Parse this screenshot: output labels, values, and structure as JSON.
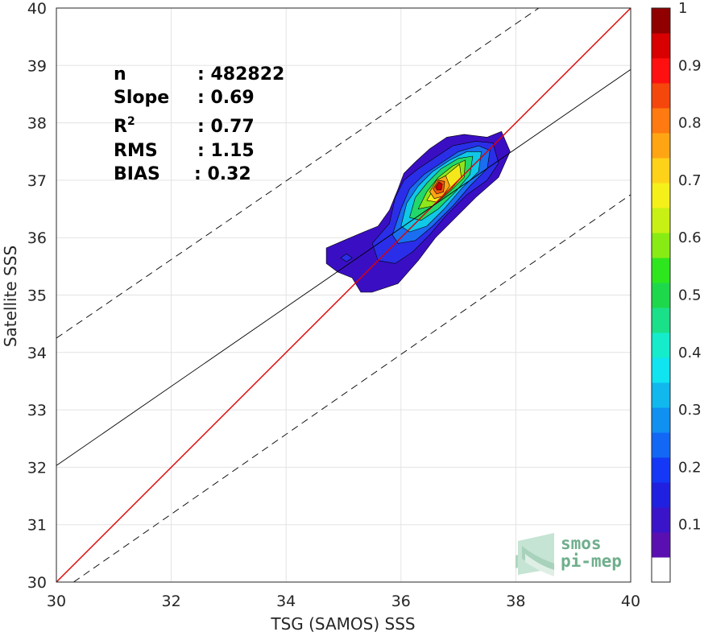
{
  "chart_data": {
    "type": "heatmap",
    "subtype": "density-scatter (filled contour)",
    "xlabel": "TSG (SAMOS) SSS",
    "ylabel": "Satellite SSS",
    "xlim": [
      30,
      40
    ],
    "ylim": [
      30,
      40
    ],
    "xticks": [
      "30",
      "32",
      "34",
      "36",
      "38",
      "40"
    ],
    "yticks": [
      "30",
      "31",
      "32",
      "33",
      "34",
      "35",
      "36",
      "37",
      "38",
      "39",
      "40"
    ],
    "grid": true,
    "stats": [
      {
        "label": "n",
        "value": ": 482822"
      },
      {
        "label": "Slope",
        "value": ": 0.69"
      },
      {
        "label": "R",
        "sup": "2",
        "value": ": 0.77"
      },
      {
        "label": "RMS",
        "value": ": 1.15"
      },
      {
        "label": "BIAS",
        "value": ": 0.32"
      }
    ],
    "lines": [
      {
        "kind": "one-to-one",
        "color": "#e00000",
        "points": [
          [
            30,
            30
          ],
          [
            40,
            40
          ]
        ]
      },
      {
        "kind": "regression",
        "color": "#000000",
        "slope": 0.69,
        "intercept": 11.33
      },
      {
        "kind": "upper-bound",
        "color": "#000000",
        "dash": true,
        "points": [
          [
            30,
            34.25
          ],
          [
            38.4,
            40
          ]
        ]
      },
      {
        "kind": "lower-bound",
        "color": "#000000",
        "dash": true,
        "points": [
          [
            30.3,
            30
          ],
          [
            40,
            36.75
          ]
        ]
      }
    ],
    "density_levels": [
      {
        "level": 0.05,
        "color": "#3a0fc4",
        "polygon": [
          [
            34.7,
            35.82
          ],
          [
            35.0,
            35.95
          ],
          [
            35.35,
            36.1
          ],
          [
            35.6,
            36.2
          ],
          [
            35.8,
            36.48
          ],
          [
            35.95,
            36.85
          ],
          [
            36.05,
            37.12
          ],
          [
            36.25,
            37.32
          ],
          [
            36.5,
            37.55
          ],
          [
            36.8,
            37.75
          ],
          [
            37.1,
            37.8
          ],
          [
            37.5,
            37.75
          ],
          [
            37.75,
            37.85
          ],
          [
            37.9,
            37.5
          ],
          [
            37.7,
            37.05
          ],
          [
            37.3,
            36.7
          ],
          [
            36.9,
            36.3
          ],
          [
            36.6,
            36.0
          ],
          [
            36.3,
            35.6
          ],
          [
            35.95,
            35.2
          ],
          [
            35.5,
            35.05
          ],
          [
            35.3,
            35.05
          ],
          [
            35.15,
            35.3
          ],
          [
            34.9,
            35.4
          ],
          [
            34.7,
            35.55
          ]
        ]
      },
      {
        "level": 0.15,
        "color": "#2a2ee8",
        "polygon": [
          [
            35.5,
            35.9
          ],
          [
            35.8,
            36.25
          ],
          [
            35.9,
            36.7
          ],
          [
            36.05,
            37.0
          ],
          [
            36.3,
            37.2
          ],
          [
            36.6,
            37.4
          ],
          [
            36.9,
            37.6
          ],
          [
            37.3,
            37.68
          ],
          [
            37.6,
            37.65
          ],
          [
            37.7,
            37.3
          ],
          [
            37.5,
            37.0
          ],
          [
            37.15,
            36.75
          ],
          [
            36.8,
            36.4
          ],
          [
            36.5,
            36.05
          ],
          [
            36.2,
            35.75
          ],
          [
            35.9,
            35.55
          ],
          [
            35.6,
            35.6
          ]
        ]
      },
      {
        "level": 0.25,
        "color": "#1a6ff0",
        "polygon": [
          [
            35.85,
            36.05
          ],
          [
            36.0,
            36.5
          ],
          [
            36.15,
            36.85
          ],
          [
            36.4,
            37.1
          ],
          [
            36.7,
            37.3
          ],
          [
            37.0,
            37.5
          ],
          [
            37.35,
            37.6
          ],
          [
            37.55,
            37.52
          ],
          [
            37.5,
            37.2
          ],
          [
            37.2,
            36.9
          ],
          [
            36.9,
            36.55
          ],
          [
            36.55,
            36.2
          ],
          [
            36.25,
            35.95
          ],
          [
            35.95,
            35.9
          ]
        ]
      },
      {
        "level": 0.35,
        "color": "#10c8e8",
        "polygon": [
          [
            36.0,
            36.2
          ],
          [
            36.1,
            36.6
          ],
          [
            36.3,
            36.9
          ],
          [
            36.55,
            37.15
          ],
          [
            36.85,
            37.35
          ],
          [
            37.15,
            37.5
          ],
          [
            37.4,
            37.5
          ],
          [
            37.35,
            37.15
          ],
          [
            37.05,
            36.85
          ],
          [
            36.75,
            36.5
          ],
          [
            36.45,
            36.2
          ],
          [
            36.15,
            36.1
          ]
        ]
      },
      {
        "level": 0.45,
        "color": "#22d86a",
        "polygon": [
          [
            36.15,
            36.35
          ],
          [
            36.25,
            36.7
          ],
          [
            36.45,
            36.95
          ],
          [
            36.7,
            37.2
          ],
          [
            37.0,
            37.38
          ],
          [
            37.25,
            37.42
          ],
          [
            37.2,
            37.1
          ],
          [
            36.95,
            36.8
          ],
          [
            36.65,
            36.5
          ],
          [
            36.35,
            36.3
          ]
        ]
      },
      {
        "level": 0.55,
        "color": "#8fe61a",
        "polygon": [
          [
            36.3,
            36.5
          ],
          [
            36.45,
            36.8
          ],
          [
            36.65,
            37.05
          ],
          [
            36.9,
            37.25
          ],
          [
            37.12,
            37.35
          ],
          [
            37.1,
            37.05
          ],
          [
            36.85,
            36.8
          ],
          [
            36.55,
            36.55
          ]
        ]
      },
      {
        "level": 0.65,
        "color": "#f5e81a",
        "polygon": [
          [
            36.45,
            36.65
          ],
          [
            36.6,
            36.9
          ],
          [
            36.8,
            37.1
          ],
          [
            37.02,
            37.28
          ],
          [
            37.05,
            37.05
          ],
          [
            36.85,
            36.82
          ],
          [
            36.62,
            36.62
          ]
        ]
      },
      {
        "level": 0.75,
        "color": "#ffa514",
        "polygon": [
          [
            36.5,
            36.8
          ],
          [
            36.62,
            37.0
          ],
          [
            36.78,
            37.08
          ],
          [
            36.85,
            36.9
          ],
          [
            36.72,
            36.72
          ],
          [
            36.58,
            36.68
          ]
        ]
      },
      {
        "level": 0.85,
        "color": "#f25a0e",
        "polygon": [
          [
            36.56,
            36.85
          ],
          [
            36.65,
            37.0
          ],
          [
            36.76,
            36.98
          ],
          [
            36.74,
            36.8
          ],
          [
            36.62,
            36.76
          ]
        ]
      },
      {
        "level": 0.95,
        "color": "#c80000",
        "polygon": [
          [
            36.6,
            36.88
          ],
          [
            36.66,
            36.97
          ],
          [
            36.72,
            36.93
          ],
          [
            36.7,
            36.83
          ],
          [
            36.63,
            36.83
          ]
        ]
      }
    ],
    "secondary_blob": {
      "color": "#2a2ee8",
      "polygon": [
        [
          34.95,
          35.65
        ],
        [
          35.05,
          35.72
        ],
        [
          35.15,
          35.65
        ],
        [
          35.05,
          35.58
        ]
      ]
    },
    "colorbar": {
      "min": 0,
      "max": 1,
      "ticks": [
        "0.1",
        "0.2",
        "0.3",
        "0.4",
        "0.5",
        "0.6",
        "0.7",
        "0.8",
        "0.9",
        "1"
      ],
      "colors": [
        "#ffffff",
        "#5a10b0",
        "#3a14c8",
        "#2020e0",
        "#1438f5",
        "#1268f5",
        "#1090f0",
        "#10b8ee",
        "#10e4f0",
        "#14eccc",
        "#1ae08a",
        "#1ed84c",
        "#2ee61e",
        "#88ec14",
        "#c8f014",
        "#f5f01a",
        "#ffd21a",
        "#ffa514",
        "#ff7a10",
        "#f5460c",
        "#ff1010",
        "#d80000",
        "#900000"
      ]
    }
  },
  "watermark": {
    "line1": "smos",
    "line2": "pi-mep"
  }
}
